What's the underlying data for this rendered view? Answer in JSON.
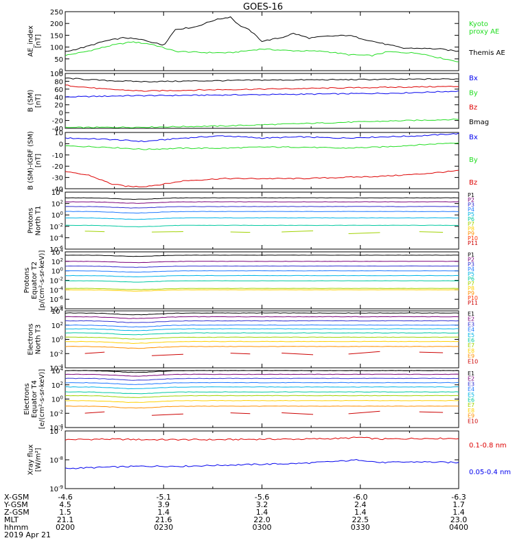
{
  "title": "GOES-16",
  "colors": {
    "black": "#000000",
    "green": "#22dd22",
    "blue": "#0000ee",
    "red": "#dd0000",
    "channels": [
      "#000000",
      "#7a007a",
      "#3030d0",
      "#1e78ff",
      "#00b4e6",
      "#00c8a0",
      "#a0d200",
      "#ffd000",
      "#ff9000",
      "#ff3000",
      "#cc0000"
    ]
  },
  "chart_data": [
    {
      "type": "line",
      "ylabel": [
        "AE_index",
        "[nT]"
      ],
      "ylim": [
        0,
        250
      ],
      "yticks": [
        "0",
        "50",
        "100",
        "150",
        "200",
        "250"
      ],
      "x": [
        0.0,
        0.12,
        0.2,
        0.33,
        0.5,
        0.66,
        0.8,
        0.92,
        1.0
      ],
      "series": [
        {
          "name": "Kyoto proxy AE",
          "legend": [
            "Kyoto",
            "proxy AE"
          ],
          "color": "green",
          "x": [
            0.0,
            0.05,
            0.12,
            0.17,
            0.22,
            0.28,
            0.35,
            0.42,
            0.5,
            0.57,
            0.66,
            0.72,
            0.78,
            0.82,
            0.86,
            0.9,
            0.95,
            1.0
          ],
          "values": [
            65,
            80,
            108,
            122,
            112,
            82,
            77,
            76,
            92,
            85,
            82,
            68,
            64,
            80,
            77,
            74,
            55,
            38
          ]
        },
        {
          "name": "Themis AE",
          "legend": [
            "Themis AE"
          ],
          "color": "black",
          "x": [
            0.0,
            0.05,
            0.1,
            0.15,
            0.2,
            0.25,
            0.28,
            0.33,
            0.38,
            0.42,
            0.44,
            0.47,
            0.5,
            0.55,
            0.58,
            0.62,
            0.66,
            0.72,
            0.78,
            0.82,
            0.86,
            0.9,
            0.95,
            1.0
          ],
          "values": [
            80,
            100,
            125,
            140,
            130,
            108,
            175,
            185,
            215,
            228,
            195,
            170,
            125,
            140,
            158,
            138,
            145,
            150,
            125,
            110,
            95,
            95,
            92,
            82
          ]
        }
      ]
    },
    {
      "type": "line",
      "ylabel": [
        "B (SM)",
        "[nT]"
      ],
      "ylim": [
        -40,
        100
      ],
      "yticks": [
        "-40",
        "-20",
        "0",
        "20",
        "40",
        "60",
        "80",
        "100"
      ],
      "series": [
        {
          "name": "Bx",
          "color": "blue",
          "x": [
            0,
            0.15,
            0.3,
            0.5,
            0.7,
            0.85,
            1.0
          ],
          "values": [
            40,
            43,
            44,
            46,
            48,
            50,
            55
          ]
        },
        {
          "name": "By",
          "color": "green",
          "x": [
            0,
            0.2,
            0.4,
            0.6,
            0.8,
            1.0
          ],
          "values": [
            -38,
            -37,
            -34,
            -28,
            -22,
            -17
          ]
        },
        {
          "name": "Bz",
          "color": "red",
          "x": [
            0,
            0.1,
            0.2,
            0.35,
            0.5,
            0.7,
            0.85,
            1.0
          ],
          "values": [
            70,
            60,
            55,
            58,
            60,
            63,
            65,
            67
          ]
        },
        {
          "name": "Bmag",
          "color": "black",
          "x": [
            0,
            0.1,
            0.2,
            0.35,
            0.5,
            0.7,
            0.85,
            1.0
          ],
          "values": [
            88,
            82,
            79,
            81,
            83,
            84,
            85,
            86
          ]
        }
      ]
    },
    {
      "type": "line",
      "ylabel": [
        "B (SM)-IGRF (SM)",
        "[nT]"
      ],
      "ylim": [
        -40,
        10
      ],
      "yticks": [
        "-40",
        "-30",
        "-20",
        "-10",
        "0",
        "10"
      ],
      "series": [
        {
          "name": "Bx",
          "color": "blue",
          "x": [
            0,
            0.1,
            0.2,
            0.3,
            0.4,
            0.5,
            0.6,
            0.7,
            0.8,
            0.9,
            1.0
          ],
          "values": [
            5,
            4,
            2,
            5,
            7,
            5,
            6,
            5,
            6,
            7,
            9
          ]
        },
        {
          "name": "By",
          "color": "green",
          "x": [
            0,
            0.1,
            0.2,
            0.3,
            0.4,
            0.5,
            0.6,
            0.7,
            0.8,
            0.9,
            1.0
          ],
          "values": [
            -2,
            -3,
            -5,
            -4,
            -4,
            -3,
            -3,
            -4,
            -3,
            -1,
            1
          ]
        },
        {
          "name": "Bz",
          "color": "red",
          "x": [
            0,
            0.06,
            0.12,
            0.16,
            0.2,
            0.25,
            0.3,
            0.4,
            0.5,
            0.6,
            0.7,
            0.8,
            0.9,
            1.0
          ],
          "values": [
            -25,
            -28,
            -36,
            -38,
            -38,
            -36,
            -33,
            -31,
            -31,
            -31,
            -30,
            -29,
            -27,
            -24
          ]
        }
      ]
    },
    {
      "type": "line",
      "yscale": "log",
      "ylabel": [
        "Protons",
        "North T1"
      ],
      "ylim": [
        "1e-6",
        "1e4"
      ],
      "yticks": [
        "10^4",
        "10^2",
        "10^0",
        "10^-2",
        "10^-4",
        "10^-6"
      ],
      "series": [
        {
          "name": "P1",
          "color_index": 0,
          "value": "1e3"
        },
        {
          "name": "P2",
          "color_index": 1,
          "value": "2e2"
        },
        {
          "name": "P3",
          "color_index": 2,
          "value": "3e1"
        },
        {
          "name": "P4",
          "color_index": 3,
          "value": "4e0"
        },
        {
          "name": "P5",
          "color_index": 4,
          "value": "3e-1"
        },
        {
          "name": "P6",
          "color_index": 5,
          "value": "1.5e-2"
        },
        {
          "name": "P7",
          "color_index": 6,
          "value": "1e-3",
          "fragmented": true
        },
        {
          "name": "P8",
          "color_index": 7
        },
        {
          "name": "P9",
          "color_index": 8
        },
        {
          "name": "P10",
          "color_index": 9
        },
        {
          "name": "P11",
          "color_index": 10
        }
      ]
    },
    {
      "type": "line",
      "yscale": "log",
      "ylabel": [
        "Protons",
        "Equator T2",
        "[p/(cm²-s-sr-keV)]"
      ],
      "ylim": [
        "1e-8",
        "1e4"
      ],
      "yticks": [
        "10^4",
        "10^2",
        "10^0",
        "10^-2",
        "10^-4",
        "10^-6",
        "10^-8"
      ],
      "series": [
        {
          "name": "P1",
          "color_index": 0,
          "value": "2e3"
        },
        {
          "name": "P2",
          "color_index": 1,
          "value": "1e2"
        },
        {
          "name": "P3",
          "color_index": 2,
          "value": "1e1"
        },
        {
          "name": "P4",
          "color_index": 3,
          "value": "1e0"
        },
        {
          "name": "P5",
          "color_index": 4,
          "value": "1e-1"
        },
        {
          "name": "P6",
          "color_index": 5,
          "value": "8e-3"
        },
        {
          "name": "P7",
          "color_index": 6,
          "value": "2e-4"
        },
        {
          "name": "P8",
          "color_index": 7,
          "value": "1e-4"
        },
        {
          "name": "P9",
          "color_index": 8
        },
        {
          "name": "P10",
          "color_index": 9
        },
        {
          "name": "P11",
          "color_index": 10
        }
      ]
    },
    {
      "type": "line",
      "yscale": "log",
      "ylabel": [
        "Electrons",
        "North T3"
      ],
      "ylim": [
        "1e-4",
        "1e4"
      ],
      "yticks": [
        "10^4",
        "10^2",
        "10^0",
        "10^-2",
        "10^-4"
      ],
      "series": [
        {
          "name": "E1",
          "color_index": 0,
          "value": "5e3"
        },
        {
          "name": "E2",
          "color_index": 1,
          "value": "1.5e3"
        },
        {
          "name": "E3",
          "color_index": 2,
          "value": "4e2"
        },
        {
          "name": "E4",
          "color_index": 3,
          "value": "1e2"
        },
        {
          "name": "E5",
          "color_index": 4,
          "value": "3e1"
        },
        {
          "name": "E6",
          "color_index": 5,
          "value": "8e0"
        },
        {
          "name": "E7",
          "color_index": 6,
          "value": "2e0"
        },
        {
          "name": "E8",
          "color_index": 7,
          "value": "5e-1"
        },
        {
          "name": "E9",
          "color_index": 8,
          "value": "1e-1"
        },
        {
          "name": "E10",
          "color_index": 10,
          "value": "1e-2",
          "fragmented": true
        }
      ]
    },
    {
      "type": "line",
      "yscale": "log",
      "ylabel": [
        "Electrons",
        "Equator T4",
        "[e/(cm²-s-sr-keV)]"
      ],
      "ylim": [
        "1e-4",
        "1e4"
      ],
      "yticks": [
        "10^4",
        "10^2",
        "10^0",
        "10^-2",
        "10^-4"
      ],
      "series": [
        {
          "name": "E1",
          "color_index": 0,
          "value": "1e4"
        },
        {
          "name": "E2",
          "color_index": 1,
          "value": "3e3"
        },
        {
          "name": "E3",
          "color_index": 2,
          "value": "8e2"
        },
        {
          "name": "E4",
          "color_index": 3,
          "value": "2e2"
        },
        {
          "name": "E5",
          "color_index": 4,
          "value": "5e1"
        },
        {
          "name": "E6",
          "color_index": 5,
          "value": "1e1"
        },
        {
          "name": "E7",
          "color_index": 6,
          "value": "3e0"
        },
        {
          "name": "E8",
          "color_index": 7,
          "value": "6e-1"
        },
        {
          "name": "E9",
          "color_index": 8,
          "value": "1e-1"
        },
        {
          "name": "E10",
          "color_index": 10,
          "value": "1e-2",
          "fragmented": true
        }
      ]
    },
    {
      "type": "line",
      "yscale": "log",
      "ylabel": [
        "Xray flux",
        "[W/m²]"
      ],
      "ylim": [
        "1e-9",
        "1e-7"
      ],
      "yticks": [
        "10^-7",
        "10^-8",
        "10^-9"
      ],
      "series": [
        {
          "name": "0.1-0.8 nm",
          "color": "red",
          "x": [
            0,
            0.1,
            0.2,
            0.3,
            0.4,
            0.5,
            0.6,
            0.7,
            0.75,
            0.8,
            0.9,
            1.0
          ],
          "values": [
            "5e-8",
            "5.2e-8",
            "5e-8",
            "5e-8",
            "5e-8",
            "5.2e-8",
            "5.2e-8",
            "5.5e-8",
            "6e-8",
            "5.2e-8",
            "5.5e-8",
            "5.5e-8"
          ]
        },
        {
          "name": "0.05-0.4 nm",
          "color": "blue",
          "x": [
            0,
            0.1,
            0.2,
            0.3,
            0.4,
            0.5,
            0.6,
            0.7,
            0.75,
            0.8,
            0.9,
            1.0
          ],
          "values": [
            "5e-9",
            "5.5e-9",
            "6e-9",
            "6e-9",
            "6.5e-9",
            "7e-9",
            "7.5e-9",
            "9e-9",
            "1e-8",
            "8e-9",
            "8.5e-9",
            "8e-9"
          ]
        }
      ]
    }
  ],
  "x_axis": {
    "row_labels": [
      "X-GSM",
      "Y-GSM",
      "Z-GSM",
      "MLT",
      "hhmm",
      "2019 Apr 21"
    ],
    "columns": [
      [
        "-4.6",
        "4.5",
        "1.5",
        "21.1",
        "0200"
      ],
      [
        "-5.1",
        "3.9",
        "1.4",
        "21.6",
        "0230"
      ],
      [
        "-5.6",
        "3.2",
        "1.4",
        "22.0",
        "0300"
      ],
      [
        "-6.0",
        "2.4",
        "1.4",
        "22.5",
        "0330"
      ],
      [
        "-6.3",
        "1.7",
        "1.4",
        "23.0",
        "0400"
      ]
    ]
  }
}
